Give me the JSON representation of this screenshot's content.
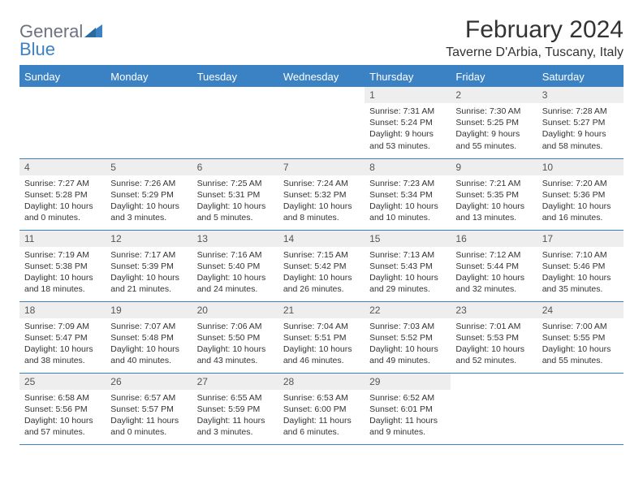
{
  "brand": {
    "part1": "General",
    "part2": "Blue"
  },
  "title": "February 2024",
  "location": "Taverne D'Arbia, Tuscany, Italy",
  "colors": {
    "accent": "#3b82c4",
    "header_text": "#ffffff",
    "daynum_bg": "#eeeeee",
    "body_text": "#333333",
    "logo_gray": "#6b7280"
  },
  "day_headers": [
    "Sunday",
    "Monday",
    "Tuesday",
    "Wednesday",
    "Thursday",
    "Friday",
    "Saturday"
  ],
  "weeks": [
    [
      {
        "empty": true
      },
      {
        "empty": true
      },
      {
        "empty": true
      },
      {
        "empty": true
      },
      {
        "n": "1",
        "sunrise": "7:31 AM",
        "sunset": "5:24 PM",
        "daylight": "9 hours and 53 minutes."
      },
      {
        "n": "2",
        "sunrise": "7:30 AM",
        "sunset": "5:25 PM",
        "daylight": "9 hours and 55 minutes."
      },
      {
        "n": "3",
        "sunrise": "7:28 AM",
        "sunset": "5:27 PM",
        "daylight": "9 hours and 58 minutes."
      }
    ],
    [
      {
        "n": "4",
        "sunrise": "7:27 AM",
        "sunset": "5:28 PM",
        "daylight": "10 hours and 0 minutes."
      },
      {
        "n": "5",
        "sunrise": "7:26 AM",
        "sunset": "5:29 PM",
        "daylight": "10 hours and 3 minutes."
      },
      {
        "n": "6",
        "sunrise": "7:25 AM",
        "sunset": "5:31 PM",
        "daylight": "10 hours and 5 minutes."
      },
      {
        "n": "7",
        "sunrise": "7:24 AM",
        "sunset": "5:32 PM",
        "daylight": "10 hours and 8 minutes."
      },
      {
        "n": "8",
        "sunrise": "7:23 AM",
        "sunset": "5:34 PM",
        "daylight": "10 hours and 10 minutes."
      },
      {
        "n": "9",
        "sunrise": "7:21 AM",
        "sunset": "5:35 PM",
        "daylight": "10 hours and 13 minutes."
      },
      {
        "n": "10",
        "sunrise": "7:20 AM",
        "sunset": "5:36 PM",
        "daylight": "10 hours and 16 minutes."
      }
    ],
    [
      {
        "n": "11",
        "sunrise": "7:19 AM",
        "sunset": "5:38 PM",
        "daylight": "10 hours and 18 minutes."
      },
      {
        "n": "12",
        "sunrise": "7:17 AM",
        "sunset": "5:39 PM",
        "daylight": "10 hours and 21 minutes."
      },
      {
        "n": "13",
        "sunrise": "7:16 AM",
        "sunset": "5:40 PM",
        "daylight": "10 hours and 24 minutes."
      },
      {
        "n": "14",
        "sunrise": "7:15 AM",
        "sunset": "5:42 PM",
        "daylight": "10 hours and 26 minutes."
      },
      {
        "n": "15",
        "sunrise": "7:13 AM",
        "sunset": "5:43 PM",
        "daylight": "10 hours and 29 minutes."
      },
      {
        "n": "16",
        "sunrise": "7:12 AM",
        "sunset": "5:44 PM",
        "daylight": "10 hours and 32 minutes."
      },
      {
        "n": "17",
        "sunrise": "7:10 AM",
        "sunset": "5:46 PM",
        "daylight": "10 hours and 35 minutes."
      }
    ],
    [
      {
        "n": "18",
        "sunrise": "7:09 AM",
        "sunset": "5:47 PM",
        "daylight": "10 hours and 38 minutes."
      },
      {
        "n": "19",
        "sunrise": "7:07 AM",
        "sunset": "5:48 PM",
        "daylight": "10 hours and 40 minutes."
      },
      {
        "n": "20",
        "sunrise": "7:06 AM",
        "sunset": "5:50 PM",
        "daylight": "10 hours and 43 minutes."
      },
      {
        "n": "21",
        "sunrise": "7:04 AM",
        "sunset": "5:51 PM",
        "daylight": "10 hours and 46 minutes."
      },
      {
        "n": "22",
        "sunrise": "7:03 AM",
        "sunset": "5:52 PM",
        "daylight": "10 hours and 49 minutes."
      },
      {
        "n": "23",
        "sunrise": "7:01 AM",
        "sunset": "5:53 PM",
        "daylight": "10 hours and 52 minutes."
      },
      {
        "n": "24",
        "sunrise": "7:00 AM",
        "sunset": "5:55 PM",
        "daylight": "10 hours and 55 minutes."
      }
    ],
    [
      {
        "n": "25",
        "sunrise": "6:58 AM",
        "sunset": "5:56 PM",
        "daylight": "10 hours and 57 minutes."
      },
      {
        "n": "26",
        "sunrise": "6:57 AM",
        "sunset": "5:57 PM",
        "daylight": "11 hours and 0 minutes."
      },
      {
        "n": "27",
        "sunrise": "6:55 AM",
        "sunset": "5:59 PM",
        "daylight": "11 hours and 3 minutes."
      },
      {
        "n": "28",
        "sunrise": "6:53 AM",
        "sunset": "6:00 PM",
        "daylight": "11 hours and 6 minutes."
      },
      {
        "n": "29",
        "sunrise": "6:52 AM",
        "sunset": "6:01 PM",
        "daylight": "11 hours and 9 minutes."
      },
      {
        "empty": true
      },
      {
        "empty": true
      }
    ]
  ],
  "labels": {
    "sunrise": "Sunrise: ",
    "sunset": "Sunset: ",
    "daylight": "Daylight: "
  }
}
